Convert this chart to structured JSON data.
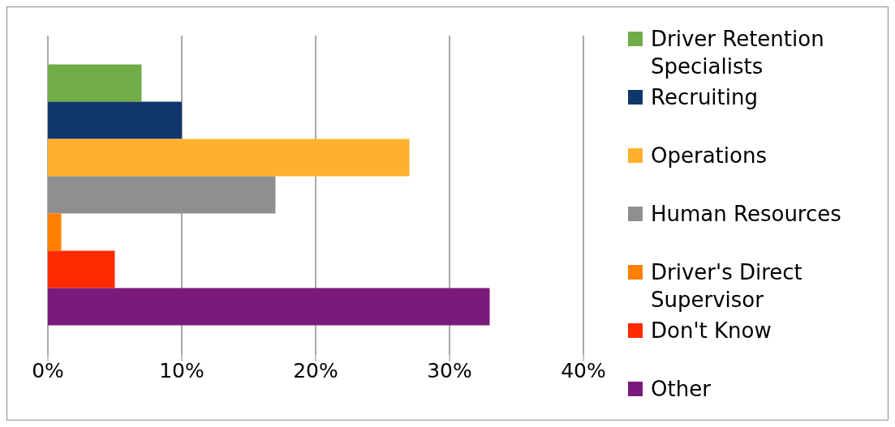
{
  "chart_data": {
    "type": "bar",
    "orientation": "horizontal",
    "categories": [
      null
    ],
    "series": [
      {
        "name": "Driver Retention Specialists",
        "color": "#70ad47",
        "values": [
          7
        ]
      },
      {
        "name": "Recruiting",
        "color": "#10366e",
        "values": [
          10
        ]
      },
      {
        "name": "Operations",
        "color": "#ffb12d",
        "values": [
          27
        ]
      },
      {
        "name": "Human Resources",
        "color": "#8f8f8f",
        "values": [
          17
        ]
      },
      {
        "name": "Driver's Direct Supervisor",
        "color": "#ff8000",
        "values": [
          1
        ]
      },
      {
        "name": "Don't Know",
        "color": "#ff2a00",
        "values": [
          5
        ]
      },
      {
        "name": "Other",
        "color": "#7b1a7b",
        "values": [
          33
        ]
      }
    ],
    "xlim": [
      0,
      40
    ],
    "xticks": [
      {
        "value": 0,
        "label": "0%"
      },
      {
        "value": 10,
        "label": "10%"
      },
      {
        "value": 20,
        "label": "20%"
      },
      {
        "value": 30,
        "label": "30%"
      },
      {
        "value": 40,
        "label": "40%"
      }
    ],
    "grid": "x",
    "legend": "right"
  }
}
